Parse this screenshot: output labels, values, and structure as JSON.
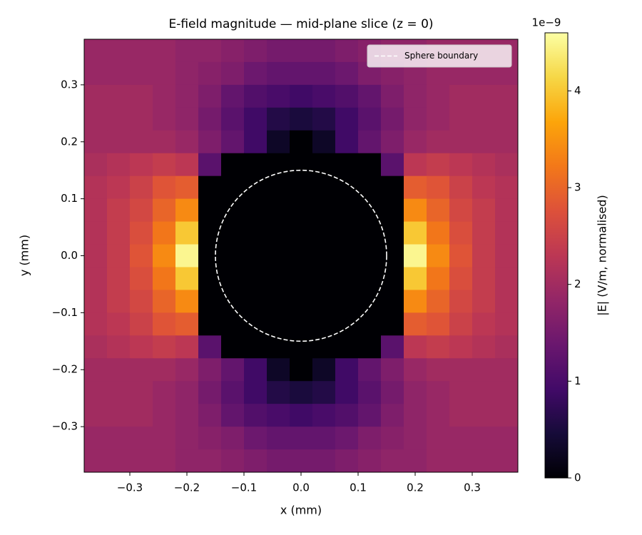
{
  "chart_data": {
    "type": "heatmap",
    "title": "E-field magnitude — mid-plane slice (z = 0)",
    "x_label": "x (mm)",
    "y_label": "y (mm)",
    "xlim": [
      -0.38,
      0.38
    ],
    "ylim": [
      -0.38,
      0.38
    ],
    "xticks": [
      {
        "value": -0.3,
        "label": "−0.3"
      },
      {
        "value": -0.2,
        "label": "−0.2"
      },
      {
        "value": -0.1,
        "label": "−0.1"
      },
      {
        "value": 0,
        "label": "0.0"
      },
      0.1,
      0.2,
      0.3
    ],
    "yticks": [
      {
        "value": -0.3,
        "label": "−0.3"
      },
      {
        "value": -0.2,
        "label": "−0.2"
      },
      {
        "value": -0.1,
        "label": "−0.1"
      },
      {
        "value": 0,
        "label": "0.0"
      },
      0.1,
      0.2,
      0.3
    ],
    "colormap": "inferno",
    "colorbar": {
      "label": "|E| (V/m, normalised)",
      "offset_label": "1e−9",
      "clim": [
        0,
        4.6
      ],
      "ticks": [
        0,
        1,
        2,
        3,
        4
      ]
    },
    "circle": {
      "center": [
        0,
        0
      ],
      "radius": 0.15,
      "color": "#ffffff",
      "label": "Sphere boundary"
    },
    "legend": "upper right",
    "z": [
      [
        1.9,
        1.9,
        1.9,
        1.9,
        1.8,
        1.8,
        1.7,
        1.6,
        1.5,
        1.5,
        1.5,
        1.6,
        1.7,
        1.8,
        1.8,
        1.9,
        1.9,
        1.9,
        1.9
      ],
      [
        1.9,
        1.9,
        1.9,
        1.9,
        1.8,
        1.7,
        1.6,
        1.4,
        1.3,
        1.3,
        1.3,
        1.4,
        1.6,
        1.7,
        1.8,
        1.9,
        1.9,
        1.9,
        1.9
      ],
      [
        2.0,
        2.0,
        2.0,
        1.9,
        1.8,
        1.6,
        1.3,
        1.1,
        1.0,
        0.9,
        1.0,
        1.1,
        1.3,
        1.6,
        1.8,
        1.9,
        2.0,
        2.0,
        2.0
      ],
      [
        2.0,
        2.0,
        2.0,
        1.9,
        1.8,
        1.5,
        1.2,
        0.9,
        0.6,
        0.5,
        0.6,
        0.9,
        1.2,
        1.5,
        1.8,
        1.9,
        2.0,
        2.0,
        2.0
      ],
      [
        2.0,
        2.0,
        2.0,
        2.0,
        1.9,
        1.6,
        1.3,
        0.9,
        0.3,
        0,
        0.3,
        0.9,
        1.3,
        1.6,
        1.9,
        2.0,
        2.0,
        2.0,
        2.0
      ],
      [
        2.1,
        2.2,
        2.3,
        2.4,
        2.3,
        1.2,
        0,
        0,
        0,
        0,
        0,
        0,
        0,
        1.2,
        2.3,
        2.4,
        2.3,
        2.2,
        2.1
      ],
      [
        2.2,
        2.3,
        2.5,
        2.8,
        2.9,
        0,
        0,
        0,
        0,
        0,
        0,
        0,
        0,
        0,
        2.9,
        2.8,
        2.5,
        2.3,
        2.2
      ],
      [
        2.2,
        2.4,
        2.6,
        3.0,
        3.4,
        0,
        0,
        0,
        0,
        0,
        0,
        0,
        0,
        0,
        3.4,
        3.0,
        2.6,
        2.4,
        2.2
      ],
      [
        2.2,
        2.4,
        2.7,
        3.2,
        4.0,
        0,
        0,
        0,
        0,
        0,
        0,
        0,
        0,
        0,
        4.0,
        3.2,
        2.7,
        2.4,
        2.2
      ],
      [
        2.2,
        2.4,
        2.8,
        3.4,
        4.5,
        0,
        0,
        0,
        0,
        0,
        0,
        0,
        0,
        0,
        4.5,
        3.4,
        2.8,
        2.4,
        2.2
      ],
      [
        2.2,
        2.4,
        2.7,
        3.2,
        4.0,
        0,
        0,
        0,
        0,
        0,
        0,
        0,
        0,
        0,
        4.0,
        3.2,
        2.7,
        2.4,
        2.2
      ],
      [
        2.2,
        2.4,
        2.6,
        3.0,
        3.4,
        0,
        0,
        0,
        0,
        0,
        0,
        0,
        0,
        0,
        3.4,
        3.0,
        2.6,
        2.4,
        2.2
      ],
      [
        2.2,
        2.3,
        2.5,
        2.8,
        2.9,
        0,
        0,
        0,
        0,
        0,
        0,
        0,
        0,
        0,
        2.9,
        2.8,
        2.5,
        2.3,
        2.2
      ],
      [
        2.1,
        2.2,
        2.3,
        2.4,
        2.3,
        1.2,
        0,
        0,
        0,
        0,
        0,
        0,
        0,
        1.2,
        2.3,
        2.4,
        2.3,
        2.2,
        2.1
      ],
      [
        2.0,
        2.0,
        2.0,
        2.0,
        1.9,
        1.6,
        1.3,
        0.9,
        0.3,
        0,
        0.3,
        0.9,
        1.3,
        1.6,
        1.9,
        2.0,
        2.0,
        2.0,
        2.0
      ],
      [
        2.0,
        2.0,
        2.0,
        1.9,
        1.8,
        1.5,
        1.2,
        0.9,
        0.6,
        0.5,
        0.6,
        0.9,
        1.2,
        1.5,
        1.8,
        1.9,
        2.0,
        2.0,
        2.0
      ],
      [
        2.0,
        2.0,
        2.0,
        1.9,
        1.8,
        1.6,
        1.3,
        1.1,
        1.0,
        0.9,
        1.0,
        1.1,
        1.3,
        1.6,
        1.8,
        1.9,
        2.0,
        2.0,
        2.0
      ],
      [
        1.9,
        1.9,
        1.9,
        1.9,
        1.8,
        1.7,
        1.6,
        1.4,
        1.3,
        1.3,
        1.3,
        1.4,
        1.6,
        1.7,
        1.8,
        1.9,
        1.9,
        1.9,
        1.9
      ],
      [
        1.9,
        1.9,
        1.9,
        1.9,
        1.8,
        1.8,
        1.7,
        1.6,
        1.5,
        1.5,
        1.5,
        1.6,
        1.7,
        1.8,
        1.8,
        1.9,
        1.9,
        1.9,
        1.9
      ]
    ]
  }
}
